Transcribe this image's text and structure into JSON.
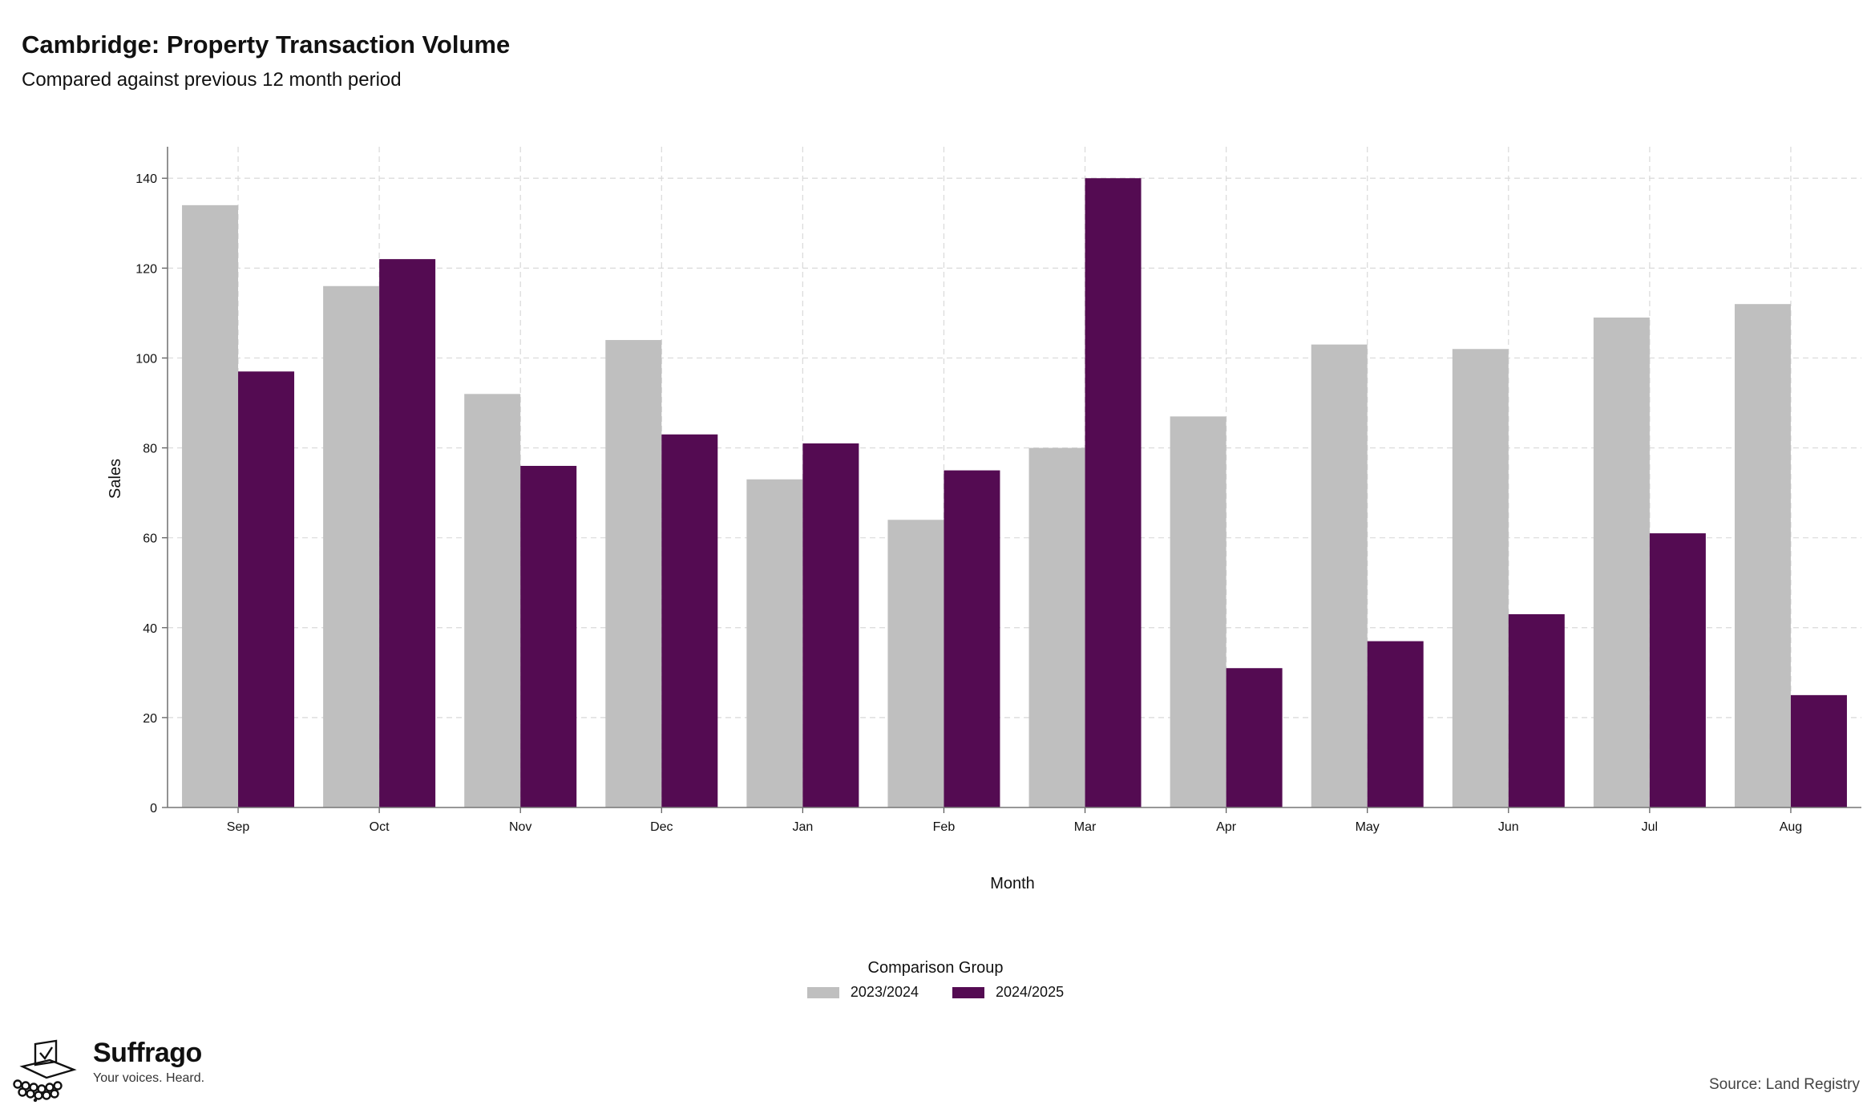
{
  "chart_data": {
    "type": "bar",
    "title": "Cambridge: Property Transaction Volume",
    "subtitle": "Compared against previous 12 month period",
    "xlabel": "Month",
    "ylabel": "Sales",
    "categories": [
      "Sep",
      "Oct",
      "Nov",
      "Dec",
      "Jan",
      "Feb",
      "Mar",
      "Apr",
      "May",
      "Jun",
      "Jul",
      "Aug"
    ],
    "series": [
      {
        "name": "2023/2024",
        "color": "#bfbfbf",
        "values": [
          134,
          116,
          92,
          104,
          73,
          64,
          80,
          87,
          103,
          102,
          109,
          112
        ]
      },
      {
        "name": "2024/2025",
        "color": "#540b52",
        "values": [
          97,
          122,
          76,
          83,
          81,
          75,
          140,
          31,
          37,
          43,
          61,
          25
        ]
      }
    ],
    "ylim": [
      0,
      147
    ],
    "yticks": [
      0,
      20,
      40,
      60,
      80,
      100,
      120,
      140
    ],
    "grid": true,
    "legend_title": "Comparison Group",
    "legend_position": "bottom-center"
  },
  "branding": {
    "name": "Suffrago",
    "tagline": "Your voices. Heard.",
    "logo_icon": "ballot-box-icon"
  },
  "source": "Source: Land Registry"
}
